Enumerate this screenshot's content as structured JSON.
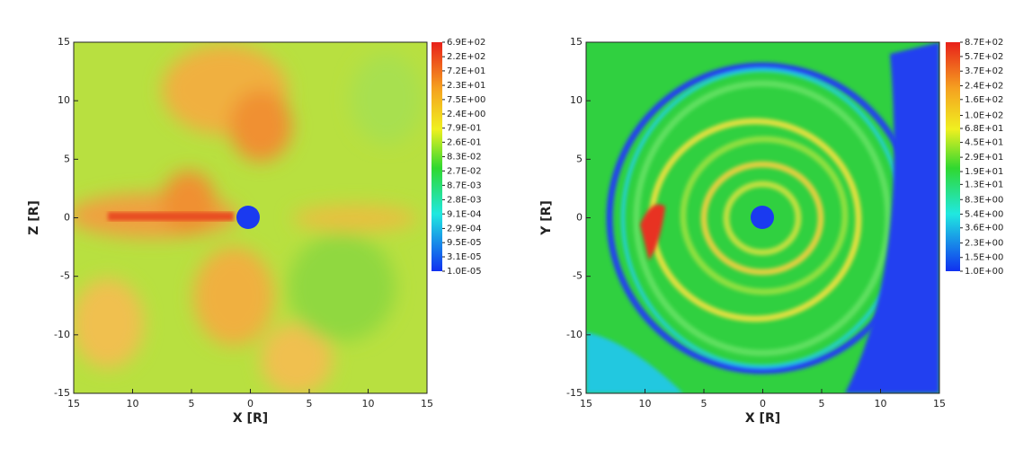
{
  "chart_data": [
    {
      "type": "heatmap",
      "xlabel": "X [R]",
      "ylabel": "Z [R]",
      "xlim": [
        -15,
        15
      ],
      "ylim": [
        -15,
        15
      ],
      "xticks": [
        {
          "value": -15,
          "label": "15"
        },
        {
          "value": -10,
          "label": "10"
        },
        {
          "value": -5,
          "label": "5"
        },
        0,
        5,
        10,
        15
      ],
      "yticks": [
        15,
        10,
        5,
        0,
        -5,
        -10,
        -15
      ],
      "colorbar": {
        "scale": "log",
        "lim": [
          1e-05,
          690
        ],
        "ticks": [
          {
            "value": 690,
            "label": "6.9E+02"
          },
          {
            "value": 220,
            "label": "2.2E+02"
          },
          {
            "value": 72,
            "label": "7.2E+01"
          },
          {
            "value": 23,
            "label": "2.3E+01"
          },
          {
            "value": 7.5,
            "label": "7.5E+00"
          },
          {
            "value": 2.4,
            "label": "2.4E+00"
          },
          {
            "value": 0.79,
            "label": "7.9E-01"
          },
          {
            "value": 0.26,
            "label": "2.6E-01"
          },
          {
            "value": 0.083,
            "label": "8.3E-02"
          },
          {
            "value": 0.027,
            "label": "2.7E-02"
          },
          {
            "value": 0.0087,
            "label": "8.7E-03"
          },
          {
            "value": 0.0028,
            "label": "2.8E-03"
          },
          {
            "value": 0.00091,
            "label": "9.1E-04"
          },
          {
            "value": 0.00029,
            "label": "2.9E-04"
          },
          {
            "value": 9.5e-05,
            "label": "9.5E-05"
          },
          {
            "value": 3.1e-05,
            "label": "3.1E-05"
          },
          {
            "value": 1e-05,
            "label": "1.0E-05"
          }
        ]
      }
    },
    {
      "type": "heatmap",
      "xlabel": "X [R]",
      "ylabel": "Y [R]",
      "xlim": [
        -15,
        15
      ],
      "ylim": [
        -15,
        15
      ],
      "xticks": [
        {
          "value": -15,
          "label": "15"
        },
        {
          "value": -10,
          "label": "10"
        },
        {
          "value": -5,
          "label": "5"
        },
        0,
        5,
        10,
        15
      ],
      "yticks": [
        15,
        10,
        5,
        0,
        -5,
        -10,
        -15
      ],
      "colorbar": {
        "scale": "log",
        "lim": [
          1,
          870
        ],
        "ticks": [
          {
            "value": 870,
            "label": "8.7E+02"
          },
          {
            "value": 570,
            "label": "5.7E+02"
          },
          {
            "value": 370,
            "label": "3.7E+02"
          },
          {
            "value": 240,
            "label": "2.4E+02"
          },
          {
            "value": 160,
            "label": "1.6E+02"
          },
          {
            "value": 100,
            "label": "1.0E+02"
          },
          {
            "value": 68,
            "label": "6.8E+01"
          },
          {
            "value": 45,
            "label": "4.5E+01"
          },
          {
            "value": 29,
            "label": "2.9E+01"
          },
          {
            "value": 19,
            "label": "1.9E+01"
          },
          {
            "value": 13,
            "label": "1.3E+01"
          },
          {
            "value": 8.3,
            "label": "8.3E+00"
          },
          {
            "value": 5.4,
            "label": "5.4E+00"
          },
          {
            "value": 3.6,
            "label": "3.6E+00"
          },
          {
            "value": 2.3,
            "label": "2.3E+00"
          },
          {
            "value": 1.5,
            "label": "1.5E+00"
          },
          {
            "value": 1,
            "label": "1.0E+00"
          }
        ]
      }
    }
  ]
}
